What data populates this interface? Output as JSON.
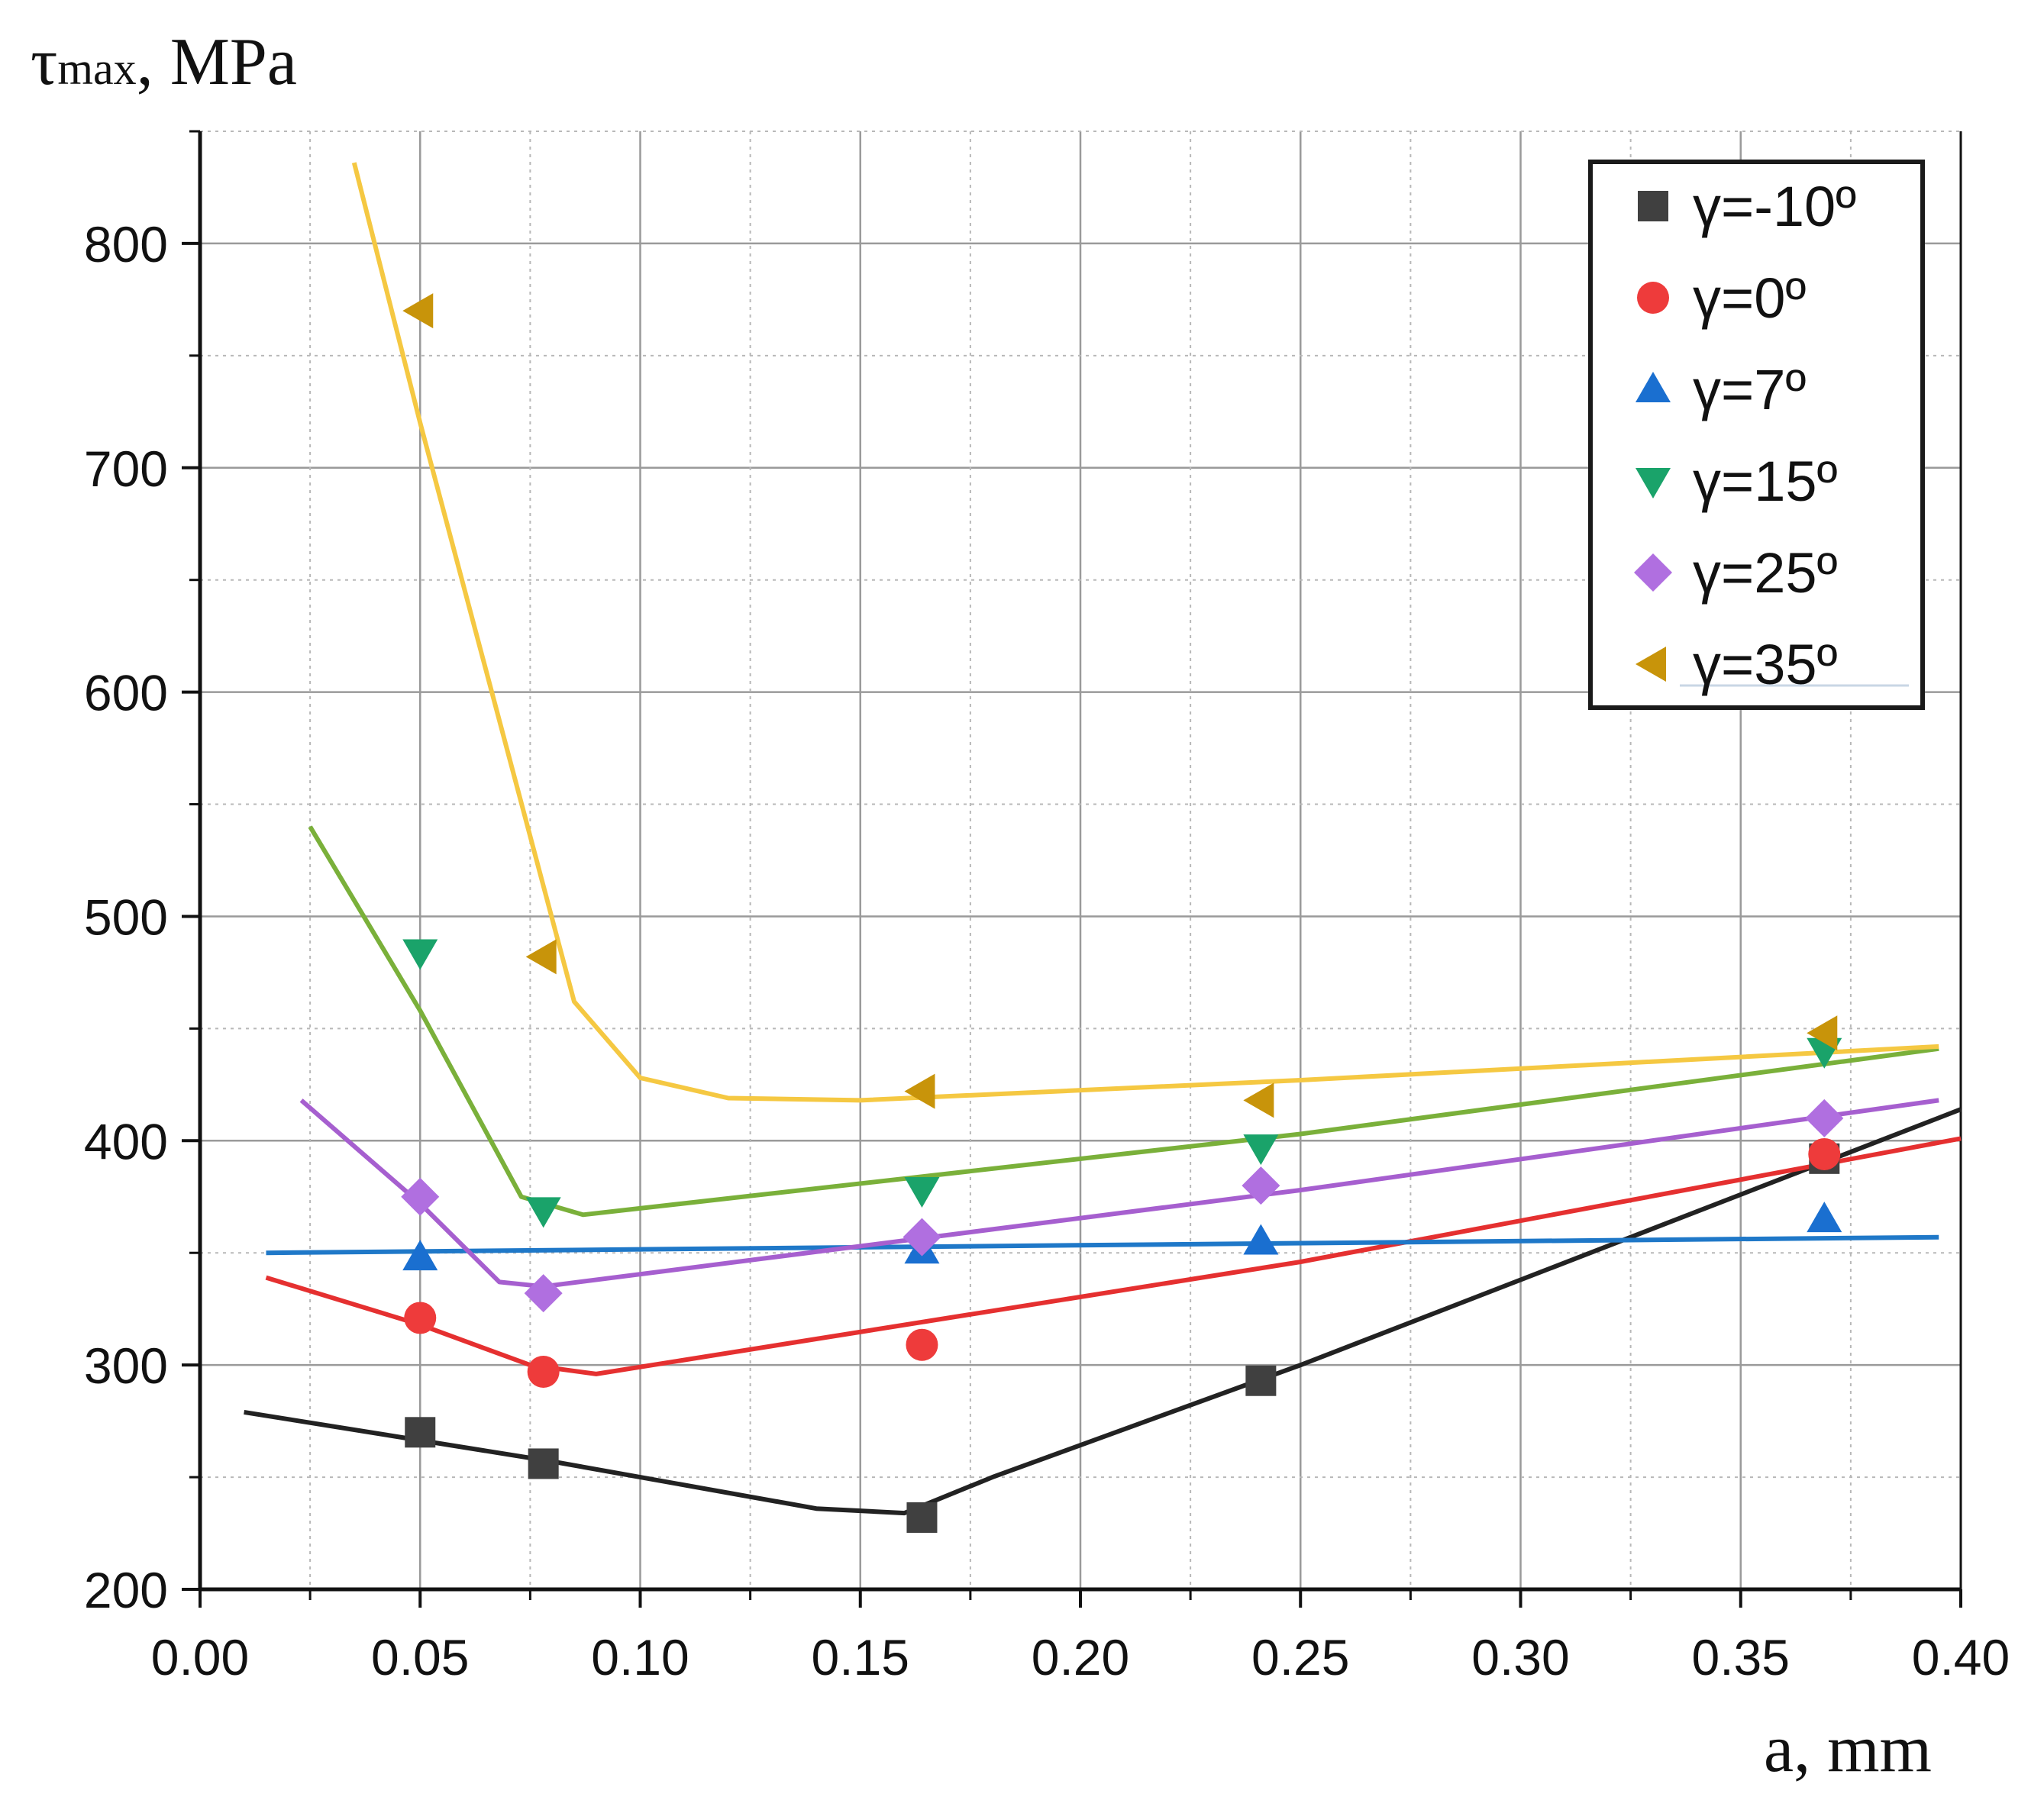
{
  "chart_data": {
    "type": "scatter",
    "title": "",
    "ylabel_main": "τ",
    "ylabel_sub": "max",
    "ylabel_unit": ", MPa",
    "xlabel": "a, mm",
    "xlim": [
      0.0,
      0.4
    ],
    "ylim": [
      200,
      850
    ],
    "x_ticks": [
      0.0,
      0.05,
      0.1,
      0.15,
      0.2,
      0.25,
      0.3,
      0.35,
      0.4
    ],
    "x_tick_labels": [
      "0.00",
      "0.05",
      "0.10",
      "0.15",
      "0.20",
      "0.25",
      "0.30",
      "0.35",
      "0.40"
    ],
    "y_ticks": [
      200,
      300,
      400,
      500,
      600,
      700,
      800
    ],
    "y_tick_labels": [
      "200",
      "300",
      "400",
      "500",
      "600",
      "700",
      "800"
    ],
    "grid": true,
    "legend_position": "top-right",
    "series": [
      {
        "name": "γ=-10º",
        "color": "#404040",
        "line_color": "#222222",
        "marker": "square",
        "x": [
          0.05,
          0.078,
          0.164,
          0.241,
          0.369
        ],
        "y": [
          270,
          256,
          232,
          293,
          392
        ],
        "fit": [
          [
            0.01,
            279
          ],
          [
            0.08,
            257
          ],
          [
            0.14,
            236
          ],
          [
            0.16,
            234
          ],
          [
            0.18,
            250
          ],
          [
            0.25,
            300
          ],
          [
            0.4,
            414
          ]
        ]
      },
      {
        "name": "γ=0º",
        "color": "#ee3b3b",
        "line_color": "#e53030",
        "marker": "circle",
        "x": [
          0.05,
          0.078,
          0.164,
          0.369
        ],
        "y": [
          321,
          297,
          309,
          394
        ],
        "fit": [
          [
            0.015,
            339
          ],
          [
            0.05,
            318
          ],
          [
            0.075,
            300
          ],
          [
            0.09,
            296
          ],
          [
            0.25,
            346
          ],
          [
            0.4,
            401
          ]
        ]
      },
      {
        "name": "γ=7º",
        "color": "#1a6fd0",
        "line_color": "#1f78c8",
        "marker": "triangle-up",
        "x": [
          0.05,
          0.164,
          0.241,
          0.369
        ],
        "y": [
          348,
          351,
          355,
          365
        ],
        "fit": [
          [
            0.015,
            350
          ],
          [
            0.395,
            357
          ]
        ]
      },
      {
        "name": "γ=15º",
        "color": "#1aa36a",
        "line_color": "#7ab03a",
        "marker": "triangle-down",
        "x": [
          0.05,
          0.078,
          0.164,
          0.241,
          0.369
        ],
        "y": [
          484,
          369,
          378,
          397,
          440
        ],
        "fit": [
          [
            0.025,
            540
          ],
          [
            0.05,
            458
          ],
          [
            0.073,
            375
          ],
          [
            0.087,
            367
          ],
          [
            0.25,
            403
          ],
          [
            0.395,
            441
          ]
        ]
      },
      {
        "name": "γ=25º",
        "color": "#b06fe0",
        "line_color": "#a65fcf",
        "marker": "diamond",
        "x": [
          0.05,
          0.078,
          0.164,
          0.241,
          0.369
        ],
        "y": [
          375,
          332,
          357,
          380,
          410
        ],
        "fit": [
          [
            0.023,
            418
          ],
          [
            0.05,
            372
          ],
          [
            0.068,
            337
          ],
          [
            0.078,
            335
          ],
          [
            0.25,
            378
          ],
          [
            0.395,
            418
          ]
        ]
      },
      {
        "name": "γ=35º",
        "color": "#c8940a",
        "line_color": "#f5c842",
        "marker": "triangle-left",
        "x": [
          0.05,
          0.078,
          0.164,
          0.241,
          0.369
        ],
        "y": [
          770,
          482,
          422,
          418,
          448
        ],
        "fit": [
          [
            0.035,
            836
          ],
          [
            0.05,
            720
          ],
          [
            0.085,
            462
          ],
          [
            0.1,
            428
          ],
          [
            0.12,
            419
          ],
          [
            0.15,
            418
          ],
          [
            0.25,
            427
          ],
          [
            0.395,
            442
          ]
        ]
      }
    ]
  }
}
